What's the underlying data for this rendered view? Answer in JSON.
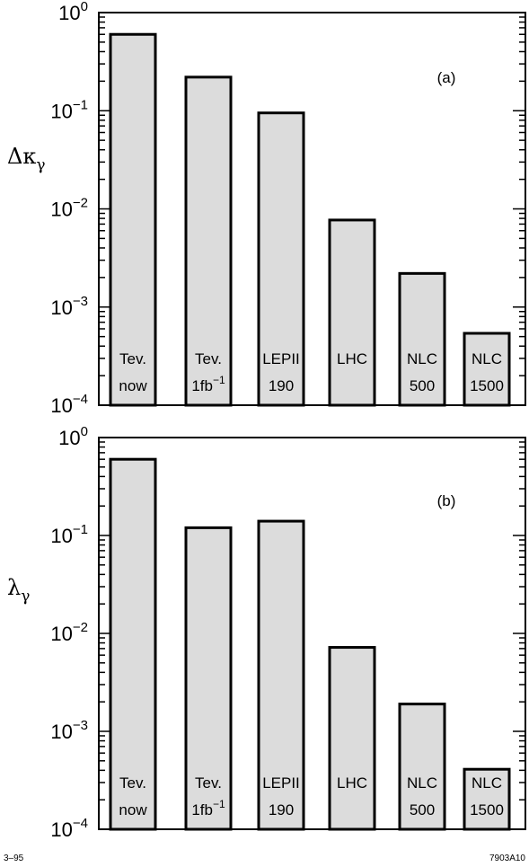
{
  "chart_data": [
    {
      "type": "bar",
      "panel_label": "(a)",
      "ylabel": "Δκ",
      "ylabel_sub": "γ",
      "yscale": "log",
      "ylim": [
        0.0001,
        1
      ],
      "yticks": [
        {
          "mantissa": "10",
          "exp": "0"
        },
        {
          "mantissa": "10",
          "exp": "−1"
        },
        {
          "mantissa": "10",
          "exp": "−2"
        },
        {
          "mantissa": "10",
          "exp": "−3"
        },
        {
          "mantissa": "10",
          "exp": "−4"
        }
      ],
      "categories": [
        {
          "line1": "Tev.",
          "line2": "now",
          "line2_sup": ""
        },
        {
          "line1": "Tev.",
          "line2": "1fb",
          "line2_sup": "−1"
        },
        {
          "line1": "LEPII",
          "line2": "190",
          "line2_sup": ""
        },
        {
          "line1": "LHC",
          "line2": "",
          "line2_sup": ""
        },
        {
          "line1": "NLC",
          "line2": "500",
          "line2_sup": ""
        },
        {
          "line1": "NLC",
          "line2": "1500",
          "line2_sup": ""
        }
      ],
      "values": [
        0.6,
        0.22,
        0.095,
        0.0077,
        0.0022,
        0.00054
      ],
      "grid": false
    },
    {
      "type": "bar",
      "panel_label": "(b)",
      "ylabel": "λ",
      "ylabel_sub": "γ",
      "yscale": "log",
      "ylim": [
        0.0001,
        1
      ],
      "yticks": [
        {
          "mantissa": "10",
          "exp": "0"
        },
        {
          "mantissa": "10",
          "exp": "−1"
        },
        {
          "mantissa": "10",
          "exp": "−2"
        },
        {
          "mantissa": "10",
          "exp": "−3"
        },
        {
          "mantissa": "10",
          "exp": "−4"
        }
      ],
      "categories": [
        {
          "line1": "Tev.",
          "line2": "now",
          "line2_sup": ""
        },
        {
          "line1": "Tev.",
          "line2": "1fb",
          "line2_sup": "−1"
        },
        {
          "line1": "LEPII",
          "line2": "190",
          "line2_sup": ""
        },
        {
          "line1": "LHC",
          "line2": "",
          "line2_sup": ""
        },
        {
          "line1": "NLC",
          "line2": "500",
          "line2_sup": ""
        },
        {
          "line1": "NLC",
          "line2": "1500",
          "line2_sup": ""
        }
      ],
      "values": [
        0.6,
        0.12,
        0.14,
        0.0072,
        0.0019,
        0.00041
      ],
      "grid": false
    }
  ],
  "footer": {
    "left": "3–95",
    "right": "7903A10"
  }
}
